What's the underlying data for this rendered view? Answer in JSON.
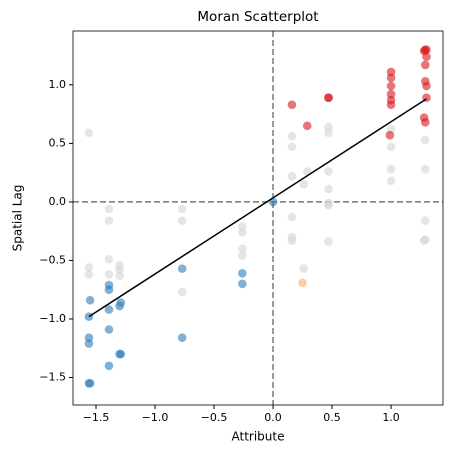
{
  "chart_data": {
    "type": "scatter",
    "title": "Moran Scatterplot",
    "x_label": "Attribute",
    "y_label": "Spatial Lag",
    "xlim": [
      -1.695,
      1.44
    ],
    "ylim": [
      -1.735,
      1.46
    ],
    "xticks": [
      {
        "value": -1.5,
        "label": "−1.5"
      },
      {
        "value": -1,
        "label": "−1.0"
      },
      {
        "value": -0.5,
        "label": "−0.5"
      },
      {
        "value": 0,
        "label": "0.0"
      },
      0.5,
      {
        "value": 1,
        "label": "1.0"
      }
    ],
    "yticks": [
      {
        "value": -1.5,
        "label": "−1.5"
      },
      {
        "value": -1,
        "label": "−1.0"
      },
      {
        "value": -0.5,
        "label": "−0.5"
      },
      {
        "value": 0,
        "label": "0.0"
      },
      0.5,
      {
        "value": 1,
        "label": "1.0"
      }
    ],
    "vline": 0,
    "hline": 0,
    "series": [
      {
        "color": "#d3d3d3",
        "x": [
          -1.56,
          -1.56,
          -1.56,
          -1.39,
          -1.39,
          -1.39,
          -1.39,
          -1.3,
          -1.3,
          -1.3,
          -0.77,
          -0.77,
          -0.77,
          -0.26,
          -0.26,
          -0.26,
          -0.26,
          0.16,
          0.16,
          0.16,
          0.16,
          0.16,
          0.16,
          0.26,
          0.26,
          0.29,
          0.47,
          0.47,
          0.47,
          0.47,
          0.47,
          0.47,
          0.47,
          1.0,
          1.0,
          1.0,
          1.0,
          1.29,
          1.29,
          1.29,
          1.29,
          1.28
        ],
        "y": [
          0.59,
          -0.56,
          -0.62,
          -0.06,
          -0.16,
          -0.49,
          -0.62,
          -0.54,
          -0.58,
          -0.63,
          -0.06,
          -0.16,
          -0.77,
          -0.21,
          -0.26,
          -0.4,
          -0.46,
          0.56,
          0.47,
          0.22,
          -0.13,
          -0.3,
          -0.33,
          0.15,
          -0.57,
          0.26,
          0.64,
          0.59,
          0.26,
          0.11,
          -0.01,
          -0.03,
          -0.34,
          0.62,
          0.47,
          0.28,
          0.18,
          0.53,
          0.28,
          -0.16,
          -0.32,
          -0.33
        ]
      },
      {
        "color": "#d7191c",
        "x": [
          0.16,
          0.29,
          0.47,
          0.47,
          1.0,
          1.0,
          1.0,
          1.0,
          1.0,
          1.0,
          0.99,
          1.29,
          1.3,
          1.28,
          1.3,
          1.29,
          1.29,
          1.3,
          1.3,
          1.28,
          1.29
        ],
        "y": [
          0.83,
          0.65,
          0.89,
          0.89,
          1.11,
          1.06,
          0.99,
          0.92,
          0.87,
          0.83,
          0.57,
          1.3,
          1.3,
          1.29,
          1.24,
          1.17,
          1.03,
          0.99,
          0.89,
          0.72,
          0.68
        ]
      },
      {
        "color": "#2c7bb6",
        "x": [
          0,
          -1.55,
          -1.56,
          -1.56,
          -1.56,
          -1.55,
          -1.56,
          -1.39,
          -1.39,
          -1.39,
          -1.39,
          -1.39,
          -1.29,
          -1.3,
          -1.29,
          -1.3,
          -0.77,
          -0.77,
          -0.26,
          -0.26
        ],
        "y": [
          0,
          -0.84,
          -0.98,
          -1.16,
          -1.21,
          -1.55,
          -1.55,
          -0.71,
          -0.75,
          -0.92,
          -1.09,
          -1.4,
          -0.86,
          -0.89,
          -1.3,
          -1.3,
          -0.57,
          -1.16,
          -0.61,
          -0.7
        ]
      },
      {
        "color": "#fdae61",
        "x": [
          0.25
        ],
        "y": [
          -0.69
        ]
      }
    ],
    "fit_line": {
      "color": "#000000",
      "x": [
        -1.56,
        1.3
      ],
      "y": [
        -0.98,
        0.88
      ]
    }
  }
}
